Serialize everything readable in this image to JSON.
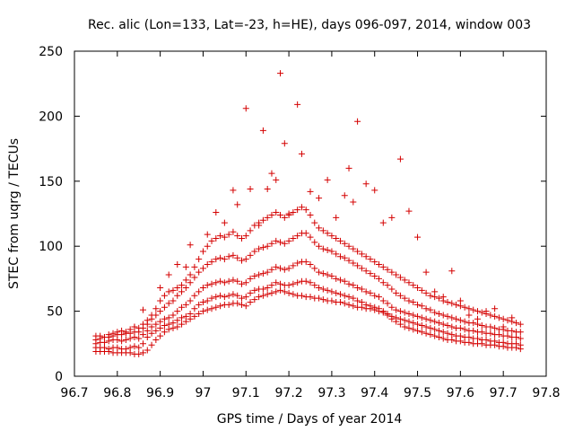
{
  "chart_data": {
    "type": "scatter",
    "title": "Rec. alic (Lon=133, Lat=-23, h=HE), days 096-097, 2014, window 003",
    "xlabel": "GPS time / Days of year 2014",
    "ylabel": "STEC from uqrg / TECUs",
    "xlim": [
      96.7,
      97.8
    ],
    "ylim": [
      0,
      250
    ],
    "xticks": [
      "96.7",
      "96.8",
      "96.9",
      "97",
      "97.1",
      "97.2",
      "97.3",
      "97.4",
      "97.5",
      "97.6",
      "97.7",
      "97.8"
    ],
    "yticks": [
      "0",
      "50",
      "100",
      "150",
      "200",
      "250"
    ],
    "grid": false,
    "marker": "+",
    "color": "#d40000",
    "series": [
      {
        "x": [
          96.75,
          96.76,
          96.77,
          96.78,
          96.79,
          96.8,
          96.81,
          96.82,
          96.83,
          96.84,
          96.85,
          96.86,
          96.87,
          96.88,
          96.89,
          96.9,
          96.91,
          96.92,
          96.93,
          96.94,
          96.95,
          96.96,
          96.97,
          96.98,
          96.99,
          97.0,
          97.01,
          97.02,
          97.03,
          97.04,
          97.05,
          97.06,
          97.07,
          97.08,
          97.09,
          97.1,
          97.11,
          97.12,
          97.13,
          97.14,
          97.15,
          97.16,
          97.17,
          97.18,
          97.19,
          97.2,
          97.21,
          97.22,
          97.23,
          97.24,
          97.25,
          97.26,
          97.27,
          97.28,
          97.29,
          97.3,
          97.31,
          97.32,
          97.33,
          97.34,
          97.35,
          97.36,
          97.37,
          97.38,
          97.39,
          97.4,
          97.41,
          97.42,
          97.43,
          97.44,
          97.45,
          97.46,
          97.47,
          97.48,
          97.49,
          97.5,
          97.51,
          97.52,
          97.53,
          97.54,
          97.55,
          97.56,
          97.57,
          97.58,
          97.59,
          97.6,
          97.61,
          97.62,
          97.63,
          97.64,
          97.65,
          97.66,
          97.67,
          97.68,
          97.69,
          97.7,
          97.71,
          97.72,
          97.73,
          97.74
        ],
        "y": [
          19,
          19,
          19,
          19,
          18,
          18,
          18,
          18,
          18,
          17,
          17,
          18,
          20,
          24,
          28,
          31,
          34,
          36,
          37,
          38,
          40,
          42,
          44,
          46,
          48,
          50,
          51,
          52,
          53,
          54,
          55,
          55,
          56,
          56,
          55,
          54,
          57,
          59,
          61,
          62,
          63,
          64,
          65,
          66,
          65,
          64,
          63,
          62,
          62,
          61,
          61,
          60,
          60,
          59,
          58,
          58,
          57,
          57,
          56,
          55,
          54,
          53,
          53,
          52,
          52,
          51,
          50,
          49,
          47,
          44,
          42,
          40,
          38,
          37,
          36,
          35,
          34,
          33,
          32,
          31,
          30,
          29,
          28,
          28,
          27,
          27,
          26,
          26,
          25,
          25,
          25,
          24,
          24,
          24,
          23,
          23,
          22,
          22,
          22,
          21
        ]
      },
      {
        "x": [
          96.75,
          96.76,
          96.77,
          96.78,
          96.79,
          96.8,
          96.81,
          96.82,
          96.83,
          96.84,
          96.85,
          96.86,
          96.87,
          96.88,
          96.89,
          96.9,
          96.91,
          96.92,
          96.93,
          96.94,
          96.95,
          96.96,
          96.97,
          96.98,
          96.99,
          97.0,
          97.01,
          97.02,
          97.03,
          97.04,
          97.05,
          97.06,
          97.07,
          97.08,
          97.09,
          97.1,
          97.11,
          97.12,
          97.13,
          97.14,
          97.15,
          97.16,
          97.17,
          97.18,
          97.19,
          97.2,
          97.21,
          97.22,
          97.23,
          97.24,
          97.25,
          97.26,
          97.27,
          97.28,
          97.29,
          97.3,
          97.31,
          97.32,
          97.33,
          97.34,
          97.35,
          97.36,
          97.37,
          97.38,
          97.39,
          97.4,
          97.41,
          97.42,
          97.43,
          97.44,
          97.45,
          97.46,
          97.47,
          97.48,
          97.49,
          97.5,
          97.51,
          97.52,
          97.53,
          97.54,
          97.55,
          97.56,
          97.57,
          97.58,
          97.59,
          97.6,
          97.61,
          97.62,
          97.63,
          97.64,
          97.65,
          97.66,
          97.67,
          97.68,
          97.69,
          97.7,
          97.71,
          97.72,
          97.73,
          97.74
        ],
        "y": [
          22,
          22,
          22,
          21,
          22,
          22,
          21,
          21,
          22,
          23,
          22,
          25,
          30,
          33,
          35,
          37,
          39,
          40,
          41,
          43,
          45,
          46,
          48,
          52,
          55,
          57,
          58,
          60,
          61,
          62,
          61,
          62,
          63,
          62,
          60,
          61,
          64,
          66,
          67,
          67,
          68,
          70,
          72,
          71,
          70,
          70,
          71,
          72,
          73,
          73,
          72,
          70,
          68,
          67,
          66,
          65,
          64,
          63,
          62,
          61,
          60,
          58,
          57,
          55,
          54,
          53,
          52,
          50,
          48,
          46,
          45,
          44,
          43,
          42,
          41,
          40,
          39,
          38,
          37,
          36,
          35,
          34,
          33,
          32,
          31,
          31,
          30,
          30,
          29,
          29,
          28,
          28,
          27,
          27,
          26,
          26,
          25,
          25,
          25,
          24
        ]
      },
      {
        "x": [
          96.75,
          96.76,
          96.77,
          96.78,
          96.79,
          96.8,
          96.81,
          96.82,
          96.83,
          96.84,
          96.85,
          96.86,
          96.87,
          96.88,
          96.89,
          96.9,
          96.91,
          96.92,
          96.93,
          96.94,
          96.95,
          96.96,
          96.97,
          96.98,
          96.99,
          97.0,
          97.01,
          97.02,
          97.03,
          97.04,
          97.05,
          97.06,
          97.07,
          97.08,
          97.09,
          97.1,
          97.11,
          97.12,
          97.13,
          97.14,
          97.15,
          97.16,
          97.17,
          97.18,
          97.19,
          97.2,
          97.21,
          97.22,
          97.23,
          97.24,
          97.25,
          97.26,
          97.27,
          97.28,
          97.29,
          97.3,
          97.31,
          97.32,
          97.33,
          97.34,
          97.35,
          97.36,
          97.37,
          97.38,
          97.39,
          97.4,
          97.41,
          97.42,
          97.43,
          97.44,
          97.45,
          97.46,
          97.47,
          97.48,
          97.49,
          97.5,
          97.51,
          97.52,
          97.53,
          97.54,
          97.55,
          97.56,
          97.57,
          97.58,
          97.59,
          97.6,
          97.61,
          97.62,
          97.63,
          97.64,
          97.65,
          97.66,
          97.67,
          97.68,
          97.69,
          97.7,
          97.71,
          97.72,
          97.73,
          97.74
        ],
        "y": [
          25,
          26,
          26,
          27,
          28,
          28,
          27,
          28,
          29,
          30,
          29,
          32,
          35,
          38,
          40,
          42,
          44,
          45,
          47,
          50,
          53,
          55,
          58,
          62,
          65,
          68,
          70,
          71,
          72,
          73,
          72,
          73,
          74,
          73,
          71,
          72,
          75,
          77,
          78,
          79,
          80,
          82,
          84,
          83,
          82,
          83,
          85,
          87,
          88,
          88,
          86,
          83,
          80,
          79,
          78,
          77,
          75,
          74,
          73,
          71,
          70,
          68,
          67,
          65,
          64,
          62,
          61,
          58,
          56,
          53,
          51,
          50,
          49,
          48,
          47,
          46,
          45,
          44,
          43,
          42,
          41,
          40,
          39,
          38,
          37,
          37,
          36,
          35,
          35,
          34,
          34,
          33,
          33,
          32,
          32,
          31,
          31,
          30,
          30,
          29
        ]
      },
      {
        "x": [
          96.75,
          96.76,
          96.77,
          96.78,
          96.79,
          96.8,
          96.81,
          96.82,
          96.83,
          96.84,
          96.85,
          96.86,
          96.87,
          96.88,
          96.89,
          96.9,
          96.91,
          96.92,
          96.93,
          96.94,
          96.95,
          96.96,
          96.97,
          96.98,
          96.99,
          97.0,
          97.01,
          97.02,
          97.03,
          97.04,
          97.05,
          97.06,
          97.07,
          97.08,
          97.09,
          97.1,
          97.11,
          97.12,
          97.13,
          97.14,
          97.15,
          97.16,
          97.17,
          97.18,
          97.19,
          97.2,
          97.21,
          97.22,
          97.23,
          97.24,
          97.25,
          97.26,
          97.27,
          97.28,
          97.29,
          97.3,
          97.31,
          97.32,
          97.33,
          97.34,
          97.35,
          97.36,
          97.37,
          97.38,
          97.39,
          97.4,
          97.41,
          97.42,
          97.43,
          97.44,
          97.45,
          97.46,
          97.47,
          97.48,
          97.49,
          97.5,
          97.51,
          97.52,
          97.53,
          97.54,
          97.55,
          97.56,
          97.57,
          97.58,
          97.59,
          97.6,
          97.61,
          97.62,
          97.63,
          97.64,
          97.65,
          97.66,
          97.67,
          97.68,
          97.69,
          97.7,
          97.71,
          97.72,
          97.73,
          97.74
        ],
        "y": [
          28,
          29,
          30,
          30,
          31,
          32,
          32,
          33,
          33,
          34,
          34,
          37,
          40,
          44,
          47,
          50,
          53,
          56,
          58,
          62,
          65,
          68,
          72,
          76,
          80,
          83,
          86,
          88,
          90,
          91,
          90,
          92,
          93,
          91,
          89,
          90,
          93,
          96,
          98,
          99,
          100,
          102,
          104,
          103,
          102,
          104,
          106,
          108,
          110,
          110,
          107,
          103,
          100,
          98,
          97,
          96,
          94,
          92,
          91,
          89,
          87,
          85,
          83,
          81,
          79,
          77,
          75,
          72,
          70,
          67,
          64,
          62,
          60,
          58,
          57,
          55,
          54,
          52,
          51,
          49,
          48,
          47,
          46,
          45,
          44,
          43,
          42,
          41,
          41,
          40,
          39,
          38,
          38,
          37,
          36,
          36,
          35,
          35,
          34,
          34
        ]
      },
      {
        "x": [
          96.75,
          96.76,
          96.77,
          96.78,
          96.79,
          96.8,
          96.81,
          96.82,
          96.83,
          96.84,
          96.85,
          96.86,
          96.87,
          96.88,
          96.89,
          96.9,
          96.91,
          96.92,
          96.93,
          96.94,
          96.95,
          96.96,
          96.97,
          96.98,
          96.99,
          97.0,
          97.01,
          97.02,
          97.03,
          97.04,
          97.05,
          97.06,
          97.07,
          97.08,
          97.09,
          97.1,
          97.11,
          97.12,
          97.13,
          97.14,
          97.15,
          97.16,
          97.17,
          97.18,
          97.19,
          97.2,
          97.21,
          97.22,
          97.23,
          97.24,
          97.25,
          97.26,
          97.27,
          97.28,
          97.29,
          97.3,
          97.31,
          97.32,
          97.33,
          97.34,
          97.35,
          97.36,
          97.37,
          97.38,
          97.39,
          97.4,
          97.41,
          97.42,
          97.43,
          97.44,
          97.45,
          97.46,
          97.47,
          97.48,
          97.49,
          97.5,
          97.51,
          97.52,
          97.53,
          97.54,
          97.55,
          97.56,
          97.57,
          97.58,
          97.59,
          97.6,
          97.61,
          97.62,
          97.63,
          97.64,
          97.65,
          97.66,
          97.67,
          97.68,
          97.69,
          97.7,
          97.71,
          97.72,
          97.73,
          97.74
        ],
        "y": [
          31,
          31,
          30,
          32,
          33,
          34,
          35,
          34,
          36,
          38,
          37,
          40,
          43,
          47,
          52,
          58,
          62,
          65,
          66,
          68,
          70,
          74,
          78,
          84,
          90,
          96,
          100,
          104,
          106,
          108,
          107,
          109,
          111,
          108,
          106,
          108,
          112,
          116,
          118,
          120,
          122,
          124,
          126,
          124,
          122,
          124,
          126,
          128,
          130,
          128,
          124,
          118,
          114,
          112,
          110,
          108,
          106,
          104,
          102,
          100,
          98,
          96,
          94,
          92,
          90,
          88,
          86,
          84,
          82,
          80,
          78,
          76,
          74,
          72,
          70,
          68,
          66,
          64,
          62,
          61,
          60,
          58,
          57,
          56,
          55,
          54,
          53,
          52,
          51,
          50,
          49,
          48,
          47,
          46,
          45,
          44,
          43,
          42,
          41,
          40
        ]
      },
      {
        "x": [
          96.84,
          96.86,
          96.9,
          96.92,
          96.94,
          96.96,
          96.97,
          97.01,
          97.03,
          97.05,
          97.07,
          97.08,
          97.1,
          97.11,
          97.13,
          97.14,
          97.15,
          97.16,
          97.17,
          97.18,
          97.19,
          97.2,
          97.22,
          97.23,
          97.25,
          97.27,
          97.29,
          97.31,
          97.33,
          97.34,
          97.35,
          97.36,
          97.38,
          97.4,
          97.42,
          97.44,
          97.46,
          97.48,
          97.5,
          97.52,
          97.54,
          97.56,
          97.58,
          97.6,
          97.62,
          97.64,
          97.66,
          97.68,
          97.7,
          97.72
        ],
        "y": [
          38,
          51,
          68,
          78,
          86,
          84,
          101,
          109,
          126,
          118,
          143,
          132,
          206,
          144,
          116,
          189,
          144,
          156,
          151,
          233,
          179,
          125,
          209,
          171,
          142,
          137,
          151,
          122,
          139,
          160,
          134,
          196,
          148,
          143,
          118,
          122,
          167,
          127,
          107,
          80,
          65,
          61,
          81,
          58,
          47,
          44,
          50,
          52,
          38,
          45
        ]
      }
    ]
  }
}
